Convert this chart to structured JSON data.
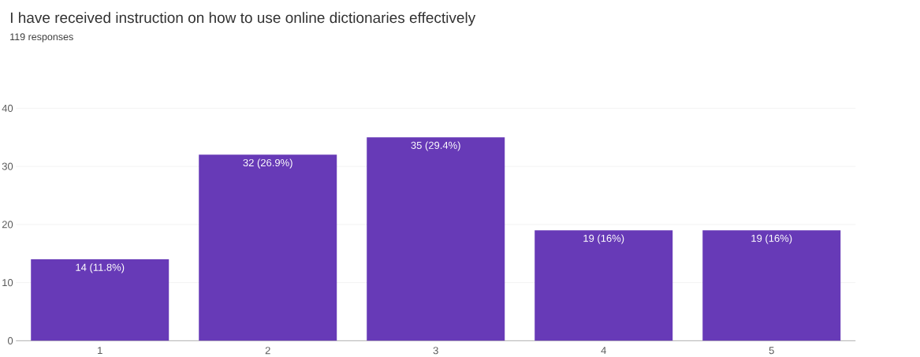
{
  "chart_data": {
    "type": "bar",
    "title": "I have received instruction on how to use online dictionaries effectively",
    "subtitle": "119 responses",
    "categories": [
      "1",
      "2",
      "3",
      "4",
      "5"
    ],
    "values": [
      14,
      32,
      35,
      19,
      19
    ],
    "value_labels": [
      "14 (11.8%)",
      "32 (26.9%)",
      "35 (29.4%)",
      "19 (16%)",
      "19 (16%)"
    ],
    "color": "#673ab7",
    "ylim": [
      0,
      40
    ],
    "yticks": [
      0,
      10,
      20,
      30,
      40
    ],
    "grid": "y"
  }
}
